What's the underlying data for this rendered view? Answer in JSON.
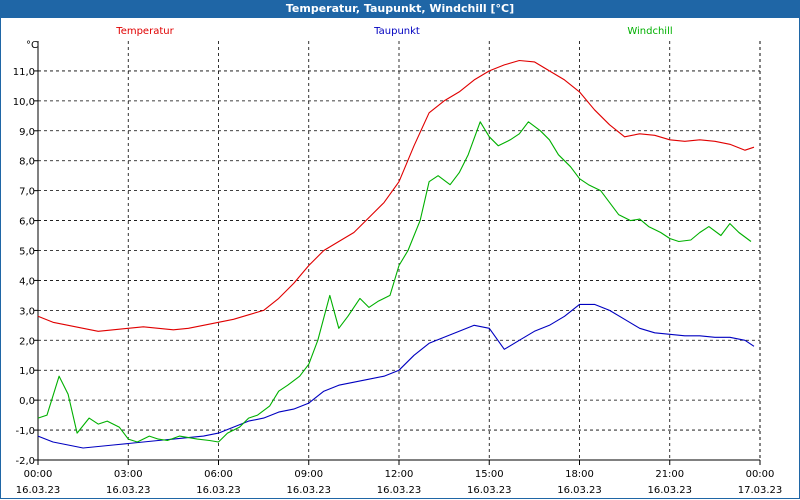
{
  "window": {
    "title": "Temperatur, Taupunkt, Windchill [°C]"
  },
  "chart_data": {
    "type": "line",
    "title": "Temperatur, Taupunkt, Windchill [°C]",
    "ylabel": "°C",
    "xlabel": "",
    "ylim": [
      -2.0,
      12.0
    ],
    "xlim": [
      0,
      24
    ],
    "grid": true,
    "y_ticks": [
      "-2,0",
      "-1,0",
      "0,0",
      "1,0",
      "2,0",
      "3,0",
      "4,0",
      "5,0",
      "6,0",
      "7,0",
      "8,0",
      "9,0",
      "10,0",
      "11,0"
    ],
    "x_ticks": [
      {
        "time": "00:00",
        "date": "16.03.23"
      },
      {
        "time": "03:00",
        "date": "16.03.23"
      },
      {
        "time": "06:00",
        "date": "16.03.23"
      },
      {
        "time": "09:00",
        "date": "16.03.23"
      },
      {
        "time": "12:00",
        "date": "16.03.23"
      },
      {
        "time": "15:00",
        "date": "16.03.23"
      },
      {
        "time": "18:00",
        "date": "16.03.23"
      },
      {
        "time": "21:00",
        "date": "16.03.23"
      },
      {
        "time": "00:00",
        "date": "17.03.23"
      }
    ],
    "series": [
      {
        "name": "Temperatur",
        "color": "#e00000",
        "x": [
          0,
          0.5,
          1,
          1.5,
          2,
          2.5,
          3,
          3.5,
          4,
          4.5,
          5,
          5.5,
          6,
          6.5,
          7,
          7.5,
          8,
          8.5,
          9,
          9.5,
          10,
          10.5,
          11,
          11.5,
          12,
          12.5,
          13,
          13.5,
          14,
          14.5,
          15,
          15.5,
          16,
          16.5,
          17,
          17.5,
          18,
          18.5,
          19,
          19.5,
          20,
          20.5,
          21,
          21.5,
          22,
          22.5,
          23,
          23.5,
          23.8
        ],
        "values": [
          2.8,
          2.6,
          2.5,
          2.4,
          2.3,
          2.35,
          2.4,
          2.45,
          2.4,
          2.35,
          2.4,
          2.5,
          2.6,
          2.7,
          2.85,
          3.0,
          3.4,
          3.9,
          4.5,
          5.0,
          5.3,
          5.6,
          6.1,
          6.6,
          7.3,
          8.5,
          9.6,
          10.0,
          10.3,
          10.7,
          11.0,
          11.2,
          11.35,
          11.3,
          11.0,
          10.7,
          10.3,
          9.7,
          9.2,
          8.8,
          8.9,
          8.85,
          8.7,
          8.65,
          8.7,
          8.65,
          8.55,
          8.35,
          8.45
        ]
      },
      {
        "name": "Taupunkt",
        "color": "#0000c0",
        "x": [
          0,
          0.5,
          1,
          1.5,
          2,
          2.5,
          3,
          3.5,
          4,
          4.5,
          5,
          5.5,
          6,
          6.5,
          7,
          7.5,
          8,
          8.5,
          9,
          9.5,
          10,
          10.5,
          11,
          11.5,
          12,
          12.5,
          13,
          13.5,
          14,
          14.5,
          15,
          15.5,
          16,
          16.5,
          17,
          17.5,
          18,
          18.5,
          19,
          19.5,
          20,
          20.5,
          21,
          21.5,
          22,
          22.5,
          23,
          23.5,
          23.8
        ],
        "values": [
          -1.2,
          -1.4,
          -1.5,
          -1.6,
          -1.55,
          -1.5,
          -1.45,
          -1.4,
          -1.35,
          -1.3,
          -1.25,
          -1.2,
          -1.1,
          -0.9,
          -0.7,
          -0.6,
          -0.4,
          -0.3,
          -0.1,
          0.3,
          0.5,
          0.6,
          0.7,
          0.8,
          1.0,
          1.5,
          1.9,
          2.1,
          2.3,
          2.5,
          2.4,
          1.7,
          2.0,
          2.3,
          2.5,
          2.8,
          3.2,
          3.2,
          3.0,
          2.7,
          2.4,
          2.25,
          2.2,
          2.15,
          2.15,
          2.1,
          2.1,
          2.0,
          1.8
        ]
      },
      {
        "name": "Windchill",
        "color": "#00b000",
        "x": [
          0,
          0.3,
          0.7,
          1,
          1.3,
          1.7,
          2,
          2.3,
          2.7,
          3,
          3.3,
          3.7,
          4,
          4.3,
          4.7,
          5,
          5.3,
          5.7,
          6,
          6.3,
          6.7,
          7,
          7.3,
          7.7,
          8,
          8.3,
          8.7,
          9,
          9.3,
          9.7,
          10,
          10.3,
          10.7,
          11,
          11.3,
          11.7,
          12,
          12.3,
          12.7,
          13,
          13.3,
          13.7,
          14,
          14.3,
          14.7,
          15,
          15.3,
          15.7,
          16,
          16.3,
          16.7,
          17,
          17.3,
          17.7,
          18,
          18.3,
          18.7,
          19,
          19.3,
          19.7,
          20,
          20.3,
          20.7,
          21,
          21.3,
          21.7,
          22,
          22.3,
          22.7,
          23,
          23.3,
          23.7
        ],
        "values": [
          -0.6,
          -0.5,
          0.8,
          0.2,
          -1.1,
          -0.6,
          -0.8,
          -0.7,
          -0.9,
          -1.3,
          -1.4,
          -1.2,
          -1.3,
          -1.35,
          -1.2,
          -1.25,
          -1.3,
          -1.35,
          -1.4,
          -1.1,
          -0.9,
          -0.6,
          -0.5,
          -0.2,
          0.3,
          0.5,
          0.8,
          1.2,
          2.0,
          3.5,
          2.4,
          2.8,
          3.4,
          3.1,
          3.3,
          3.5,
          4.5,
          5.0,
          6.0,
          7.3,
          7.5,
          7.2,
          7.6,
          8.2,
          9.3,
          8.8,
          8.5,
          8.7,
          8.9,
          9.3,
          9.0,
          8.7,
          8.2,
          7.8,
          7.4,
          7.2,
          7.0,
          6.6,
          6.2,
          6.0,
          6.05,
          5.8,
          5.6,
          5.4,
          5.3,
          5.35,
          5.6,
          5.8,
          5.5,
          5.9,
          5.6,
          5.3
        ]
      }
    ]
  }
}
